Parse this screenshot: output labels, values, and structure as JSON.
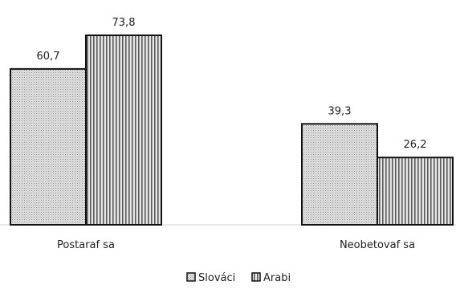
{
  "chart_data": {
    "type": "bar",
    "categories": [
      "Postaraf sa",
      "Neobetovaf sa"
    ],
    "series": [
      {
        "name": "Slováci",
        "values": [
          60.7,
          39.3
        ],
        "value_labels": [
          "60,7",
          "39,3"
        ],
        "pattern": "dots",
        "color": "#cfcfcf"
      },
      {
        "name": "Arabi",
        "values": [
          73.8,
          26.2
        ],
        "value_labels": [
          "73,8",
          "26,2"
        ],
        "pattern": "vertical-stripes",
        "color": "#9a9a9a"
      }
    ],
    "ylim": [
      0,
      73.8
    ],
    "grid": false,
    "axes_visible": false,
    "legend": "bottom-center"
  }
}
